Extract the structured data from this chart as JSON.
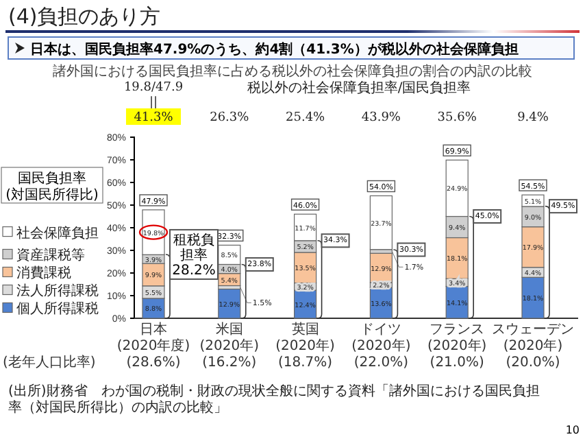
{
  "chart_data": {
    "type": "bar",
    "stacked": true,
    "title": "(4)負担のあり方",
    "subtitle": "日本は、国民負担率47.9%のうち、約4割（41.3%）が税以外の社会保障負担",
    "categories": [
      "日本\n(2020年度)\n(28.6%)",
      "米国\n(2020年)\n(16.2%)",
      "英国\n(2020年)\n(18.7%)",
      "ドイツ\n(2020年)\n(22.0%)",
      "フランス\n(2020年)\n(21.0%)",
      "スウェーデン\n(2020年)\n(20.0%)"
    ],
    "series": [
      {
        "name": "個人所得課税",
        "color": "#4f81d0",
        "values": [
          8.8,
          12.9,
          12.4,
          13.6,
          14.1,
          18.1
        ],
        "value_labels": [
          "8.8%",
          "12.9%",
          "12.4%",
          "13.6%",
          "14.1%",
          "18.1%"
        ]
      },
      {
        "name": "法人所得課税",
        "color": "#dcdcdc",
        "values": [
          5.5,
          1.5,
          3.2,
          2.2,
          3.4,
          4.4
        ],
        "value_labels": [
          "5.5%",
          "1.5%",
          "3.2%",
          "2.2%",
          "3.4%",
          "4.4%"
        ]
      },
      {
        "name": "消費課税",
        "color": "#f8c39a",
        "values": [
          9.9,
          5.4,
          13.5,
          12.9,
          18.1,
          17.9
        ],
        "value_labels": [
          "9.9%",
          "5.4%",
          "13.5%",
          "12.9%",
          "18.1%",
          "17.9%"
        ]
      },
      {
        "name": "資産課税等",
        "color": "#cfcfcf",
        "values": [
          3.9,
          4.0,
          5.2,
          1.7,
          9.4,
          9.0
        ],
        "value_labels": [
          "3.9%",
          "4.0%",
          "5.2%",
          "1.7%",
          "9.4%",
          "9.0%"
        ]
      },
      {
        "name": "社会保障負担",
        "color": "#ffffff",
        "values": [
          19.8,
          8.5,
          11.7,
          23.7,
          24.9,
          5.1
        ],
        "value_labels": [
          "19.8%",
          "8.5%",
          "11.7%",
          "23.7%",
          "24.9%",
          "5.1%"
        ]
      }
    ],
    "totals": [
      "47.9%",
      "32.3%",
      "46.0%",
      "54.0%",
      "69.9%",
      "54.5%"
    ],
    "ylim": [
      0,
      80
    ],
    "yticks": [
      {
        "value": 0,
        "label": "0%"
      },
      {
        "value": 10,
        "label": "10%"
      },
      {
        "value": 20,
        "label": "20%"
      },
      {
        "value": 30,
        "label": "30%"
      },
      {
        "value": 40,
        "label": "40%"
      },
      {
        "value": 50,
        "label": "50%"
      },
      {
        "value": 60,
        "label": "60%"
      },
      {
        "value": 70,
        "label": "70%"
      },
      {
        "value": 80,
        "label": "80%"
      }
    ],
    "legend": "left",
    "annotations": [
      "諸外国における国民負担率に占める税以外の社会保障負担の割合の内訳の比較",
      "税以外の社会保障負担率/国民負担率",
      "国民負担率\n(対国民所得比)",
      "(老年人口比率)",
      "(出所)財務省　わが国の税制・財政の現状全般に関する資料「諸外国における国民負担率（対国民所得比）の内訳の比較」",
      "10",
      "19.8/47.9",
      "||",
      "41.3%",
      "26.3%",
      "25.4%",
      "43.9%",
      "35.6%",
      "9.4%",
      {
        "text": "租税負担率\n28.2%",
        "x": "日本\n(2020年度)\n(28.6%)",
        "y": 28.2
      },
      {
        "text": "23.8%",
        "x": "米国\n(2020年)\n(16.2%)",
        "y": 23.8
      },
      {
        "text": "34.3%",
        "x": "英国\n(2020年)\n(18.7%)",
        "y": 34.3
      },
      {
        "text": "30.3%",
        "x": "ドイツ\n(2020年)\n(22.0%)",
        "y": 30.3
      },
      {
        "text": "45.0%",
        "x": "フランス\n(2020年)\n(21.0%)",
        "y": 45.0
      },
      {
        "text": "49.5%",
        "x": "スウェーデン\n(2020年)\n(20.0%)",
        "y": 49.5
      }
    ]
  }
}
